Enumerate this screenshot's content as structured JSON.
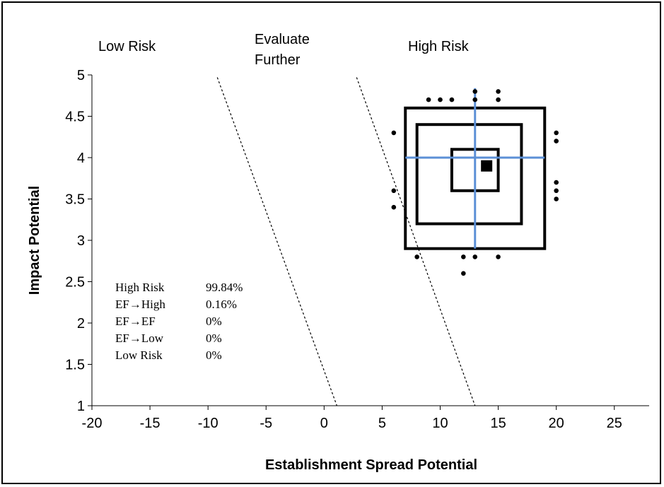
{
  "chart_data": {
    "type": "scatter",
    "xlabel": "Establishment Spread Potential",
    "ylabel": "Impact Potential",
    "xlim": [
      -20,
      28
    ],
    "ylim": [
      1,
      5
    ],
    "x_ticks": [
      "-20",
      "-15",
      "-10",
      "-5",
      "0",
      "5",
      "10",
      "15",
      "20",
      "25"
    ],
    "y_ticks": [
      "1",
      "1.5",
      "2",
      "2.5",
      "3",
      "3.5",
      "4",
      "4.5",
      "5"
    ],
    "region_labels": [
      {
        "id": "low",
        "lines": [
          "Low Risk"
        ]
      },
      {
        "id": "evaluate",
        "lines": [
          "Evaluate",
          "Further"
        ]
      },
      {
        "id": "high",
        "lines": [
          "High Risk"
        ]
      }
    ],
    "threshold_lines": [
      {
        "x1": -9.2,
        "y1": 4.97,
        "x2": 1.1,
        "y2": 1.0
      },
      {
        "x1": 2.8,
        "y1": 4.97,
        "x2": 13.0,
        "y2": 1.0
      }
    ],
    "point_estimate": {
      "x": 14,
      "y": 3.9
    },
    "crosshair": {
      "x": 13,
      "y": 4.0,
      "x_range": [
        7,
        19
      ],
      "y_range": [
        2.9,
        4.6
      ]
    },
    "confidence_boxes": [
      {
        "x0": 7,
        "x1": 19,
        "y0": 2.9,
        "y1": 4.6
      },
      {
        "x0": 8,
        "x1": 17,
        "y0": 3.2,
        "y1": 4.4
      },
      {
        "x0": 11,
        "x1": 15,
        "y0": 3.6,
        "y1": 4.1
      }
    ],
    "outlier_points": [
      {
        "x": 9,
        "y": 4.7
      },
      {
        "x": 10,
        "y": 4.7
      },
      {
        "x": 11,
        "y": 4.7
      },
      {
        "x": 13,
        "y": 4.8
      },
      {
        "x": 13,
        "y": 4.7
      },
      {
        "x": 15,
        "y": 4.8
      },
      {
        "x": 15,
        "y": 4.7
      },
      {
        "x": 6,
        "y": 4.3
      },
      {
        "x": 20,
        "y": 4.3
      },
      {
        "x": 20,
        "y": 4.2
      },
      {
        "x": 6,
        "y": 3.6
      },
      {
        "x": 6,
        "y": 3.4
      },
      {
        "x": 20,
        "y": 3.7
      },
      {
        "x": 20,
        "y": 3.6
      },
      {
        "x": 20,
        "y": 3.5
      },
      {
        "x": 8,
        "y": 2.8
      },
      {
        "x": 12,
        "y": 2.8
      },
      {
        "x": 13,
        "y": 2.8
      },
      {
        "x": 15,
        "y": 2.8
      },
      {
        "x": 12,
        "y": 2.6
      }
    ],
    "stats": [
      {
        "label": "High Risk",
        "value": "99.84%"
      },
      {
        "label": "EF→High",
        "value": "0.16%"
      },
      {
        "label": "EF→EF",
        "value": "0%"
      },
      {
        "label": "EF→Low",
        "value": "0%"
      },
      {
        "label": "Low Risk",
        "value": "0%"
      }
    ],
    "colors": {
      "crosshair": "#5b8fd6",
      "box": "#000000",
      "points": "#000000"
    },
    "grid": false,
    "legend": "none"
  }
}
